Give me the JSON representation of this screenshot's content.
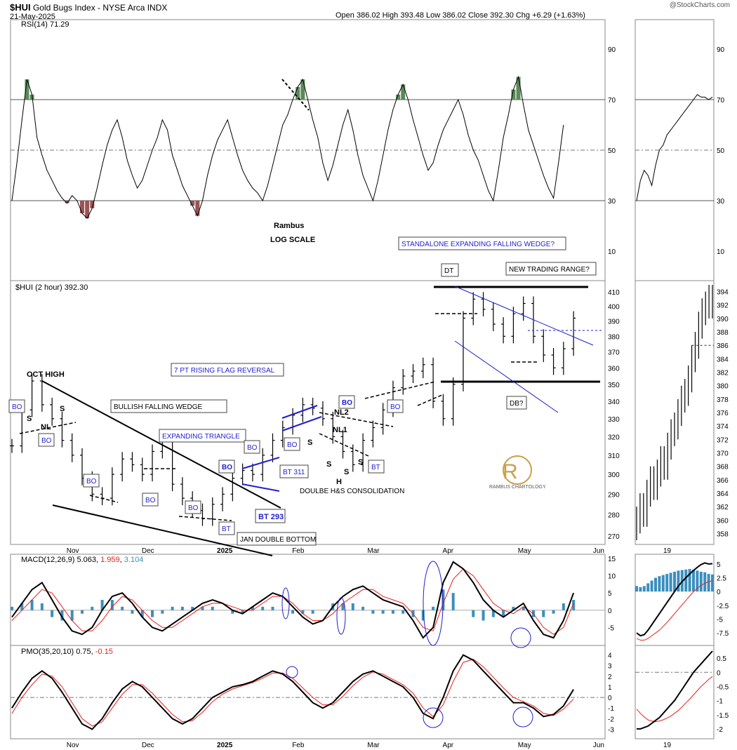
{
  "header": {
    "symbol": "$HUI",
    "name": "Gold Bugs Index - NYSE Arca  INDX",
    "date": "21-May-2025",
    "watermark": "@StockCharts.com",
    "ohlc": "Open 386.02  High 393.48  Low 386.02  Close 392.30  Chg +6.29 (+1.63%)",
    "chg_color": "#008000"
  },
  "colors": {
    "price": "#000000",
    "annotation_blue": "#1f1fd1",
    "macd_signal": "#e8201c",
    "histogram": "#3a8fbe",
    "rsi_over": "#5a8a5a",
    "rsi_under": "#9b5454",
    "logo": "#c9a04a"
  },
  "chart_data": [
    {
      "type": "line",
      "name": "rsi",
      "label": "RSI(14) 71.29",
      "ylim": [
        0,
        100
      ],
      "ticks": [
        10,
        30,
        50,
        70,
        90
      ],
      "x": [
        0,
        2,
        4,
        6,
        8,
        10,
        12,
        14,
        16,
        18,
        20,
        22,
        24,
        26,
        28,
        30,
        32,
        34,
        36,
        38,
        40,
        42,
        44,
        46,
        48,
        50,
        52,
        54,
        56,
        58,
        60,
        62,
        64,
        66,
        68,
        70,
        72,
        74,
        76,
        78,
        80,
        82,
        84,
        86,
        88,
        90,
        92,
        94,
        96,
        98,
        100,
        102,
        104,
        106,
        108,
        110,
        112,
        114,
        116,
        118,
        120,
        122,
        124,
        126,
        128,
        130,
        132,
        134,
        136,
        138,
        140,
        142,
        144,
        146,
        148,
        150,
        152,
        154,
        156,
        158,
        160,
        162,
        164,
        166,
        168,
        170,
        172,
        174,
        176,
        178,
        180,
        182,
        184,
        186,
        188,
        190,
        192,
        194,
        196,
        198,
        200,
        202,
        204,
        206,
        208,
        210,
        212,
        214,
        216,
        218,
        220
      ],
      "values": [
        30,
        45,
        62,
        78,
        72,
        55,
        48,
        42,
        38,
        34,
        31,
        29,
        32,
        30,
        25,
        23,
        27,
        35,
        44,
        52,
        58,
        62,
        55,
        46,
        40,
        35,
        38,
        44,
        50,
        55,
        62,
        58,
        48,
        42,
        36,
        32,
        28,
        24,
        30,
        40,
        48,
        54,
        58,
        62,
        55,
        48,
        42,
        38,
        35,
        33,
        30,
        36,
        44,
        52,
        60,
        64,
        70,
        75,
        78,
        70,
        62,
        55,
        45,
        38,
        44,
        52,
        60,
        66,
        58,
        48,
        40,
        35,
        30,
        38,
        48,
        58,
        66,
        72,
        76,
        70,
        62,
        55,
        48,
        42,
        45,
        52,
        58,
        62,
        66,
        70,
        64,
        56,
        50,
        46,
        40,
        34,
        30,
        42,
        55,
        64,
        74,
        79,
        68,
        58,
        52,
        46,
        40,
        35,
        31,
        45,
        60
      ],
      "overbought": 70,
      "oversold": 30,
      "annotations": [
        "Rambus",
        "LOG SCALE"
      ]
    },
    {
      "type": "ohlc",
      "name": "price",
      "label": "$HUI (2 hour) 392.30",
      "scale": "log",
      "ylim": [
        268,
        415
      ],
      "ticks": [
        270,
        280,
        290,
        300,
        310,
        320,
        330,
        340,
        350,
        360,
        370,
        380,
        390,
        400,
        410
      ],
      "x_labels": [
        "Nov",
        "Dec",
        "2025",
        "Feb",
        "Mar",
        "Apr",
        "May",
        "Jun"
      ],
      "x_label_pos": [
        24,
        54,
        84,
        114,
        144,
        174,
        204,
        234
      ],
      "x": [
        0,
        4,
        8,
        12,
        16,
        20,
        24,
        28,
        32,
        36,
        40,
        44,
        48,
        52,
        56,
        60,
        64,
        68,
        72,
        76,
        80,
        84,
        88,
        92,
        96,
        100,
        104,
        108,
        112,
        116,
        120,
        124,
        128,
        132,
        136,
        140,
        144,
        148,
        152,
        156,
        160,
        164,
        168,
        172,
        176,
        180,
        184,
        188,
        192,
        196,
        200,
        204,
        208,
        212,
        216,
        220,
        224
      ],
      "close": [
        315,
        335,
        352,
        338,
        330,
        318,
        310,
        298,
        290,
        288,
        300,
        308,
        305,
        300,
        312,
        318,
        295,
        288,
        282,
        278,
        285,
        290,
        298,
        302,
        300,
        310,
        318,
        325,
        332,
        338,
        336,
        330,
        320,
        312,
        305,
        318,
        325,
        335,
        348,
        355,
        358,
        362,
        340,
        330,
        350,
        392,
        405,
        398,
        388,
        380,
        395,
        402,
        380,
        368,
        360,
        372,
        392
      ],
      "levels": [
        {
          "label": "OCT HIGH"
        },
        {
          "label": "BULLISH FALLING WEDGE"
        },
        {
          "label": "EXPANDING TRIANGLE"
        },
        {
          "label": "7 PT RISING FLAG  REVERSAL"
        },
        {
          "label": "JAN DOUBLE BOTTOM"
        },
        {
          "label": "DOULBE H&S CONSOLIDATION"
        },
        {
          "label": "STANDALONE EXPANDING FALLING WEDGE?"
        },
        {
          "label": "NEW TRADING RANGE?"
        },
        {
          "label": "DT"
        },
        {
          "label": "DB?"
        },
        {
          "label": "BT 293"
        },
        {
          "label": "BT 311"
        },
        {
          "label": "NL2"
        },
        {
          "label": "NL1"
        },
        {
          "label": "NL"
        }
      ],
      "callouts": [
        "BO",
        "BO",
        "BO",
        "BO",
        "BO",
        "BO",
        "BO",
        "BO",
        "BO",
        "BO",
        "BT",
        "BT",
        "BT"
      ],
      "shoulder_labels": [
        "S",
        "S",
        "S",
        "S",
        "S",
        "S",
        "H"
      ],
      "logo_text": "RAMBUS CHARTOLOGY"
    },
    {
      "type": "line",
      "name": "macd",
      "label": "MACD(12,26,9) 5.063, 1.959, 3.104",
      "label_parts": [
        "MACD(12,26,9) 5.063, ",
        "1.959",
        ", ",
        "3.104"
      ],
      "ylim": [
        -9,
        15
      ],
      "ticks": [
        -5,
        0,
        5,
        10,
        15
      ],
      "x": [
        0,
        4,
        8,
        12,
        16,
        20,
        24,
        28,
        32,
        36,
        40,
        44,
        48,
        52,
        56,
        60,
        64,
        68,
        72,
        76,
        80,
        84,
        88,
        92,
        96,
        100,
        104,
        108,
        112,
        116,
        120,
        124,
        128,
        132,
        136,
        140,
        144,
        148,
        152,
        156,
        160,
        164,
        168,
        172,
        176,
        180,
        184,
        188,
        192,
        196,
        200,
        204,
        208,
        212,
        216,
        220,
        224
      ],
      "macd": [
        -2,
        2,
        6,
        8,
        3,
        -2,
        -6,
        -7,
        -5,
        0,
        4,
        5,
        2,
        -2,
        -5,
        -6,
        -4,
        -2,
        0,
        2,
        3,
        2,
        0,
        -1,
        1,
        3,
        5,
        4,
        1,
        -2,
        -4,
        -3,
        1,
        4,
        6,
        7,
        5,
        3,
        2,
        1,
        -3,
        -8,
        -5,
        8,
        14,
        12,
        8,
        3,
        0,
        -2,
        0,
        2,
        -3,
        -7,
        -8,
        -3,
        5
      ],
      "signal": [
        -3,
        0,
        3,
        6,
        5,
        1,
        -3,
        -6,
        -6,
        -3,
        1,
        4,
        3,
        0,
        -3,
        -5,
        -5,
        -3,
        -1,
        1,
        2,
        2,
        1,
        0,
        0,
        2,
        4,
        4,
        2,
        -1,
        -3,
        -3,
        -1,
        2,
        4,
        6,
        6,
        4,
        3,
        2,
        -1,
        -5,
        -6,
        2,
        9,
        12,
        10,
        6,
        2,
        0,
        -1,
        1,
        -1,
        -5,
        -7,
        -5,
        2
      ],
      "circle_count": 4
    },
    {
      "type": "line",
      "name": "pmo",
      "label": "PMO(35,20,10) 0.75, -0.15",
      "label_parts": [
        "PMO(35,20,10) 0.75, ",
        "-0.15"
      ],
      "ylim": [
        -3.5,
        4.5
      ],
      "ticks": [
        -3,
        -2,
        -1,
        0,
        1,
        2,
        3,
        4
      ],
      "x": [
        0,
        4,
        8,
        12,
        16,
        20,
        24,
        28,
        32,
        36,
        40,
        44,
        48,
        52,
        56,
        60,
        64,
        68,
        72,
        76,
        80,
        84,
        88,
        92,
        96,
        100,
        104,
        108,
        112,
        116,
        120,
        124,
        128,
        132,
        136,
        140,
        144,
        148,
        152,
        156,
        160,
        164,
        168,
        172,
        176,
        180,
        184,
        188,
        192,
        196,
        200,
        204,
        208,
        212,
        216,
        220,
        224
      ],
      "pmo": [
        -1,
        0.5,
        1.8,
        2.5,
        1.8,
        0.5,
        -1,
        -2.5,
        -3,
        -2,
        -0.5,
        0.8,
        1.5,
        1,
        0,
        -1,
        -2,
        -2.5,
        -2,
        -1,
        0,
        0.5,
        1,
        1.2,
        1.5,
        2,
        2.5,
        2.2,
        1.5,
        0.5,
        -0.5,
        -1,
        -0.5,
        0.5,
        1.5,
        2.2,
        2.5,
        2,
        1.5,
        1,
        0,
        -1.5,
        -2,
        0,
        2.5,
        4,
        3.5,
        2.5,
        1.5,
        0.5,
        -0.5,
        -0.5,
        -1,
        -1.8,
        -1.6,
        -0.8,
        0.75
      ],
      "signal": [
        -1.5,
        0,
        1.2,
        2.2,
        2,
        1,
        -0.5,
        -2,
        -2.7,
        -2.3,
        -1,
        0.3,
        1.2,
        1.2,
        0.4,
        -0.6,
        -1.6,
        -2.3,
        -2.2,
        -1.4,
        -0.4,
        0.3,
        0.8,
        1.1,
        1.4,
        1.8,
        2.3,
        2.3,
        1.8,
        0.9,
        0,
        -0.7,
        -0.7,
        0.1,
        1.1,
        1.9,
        2.4,
        2.2,
        1.7,
        1.2,
        0.4,
        -1,
        -1.8,
        -0.7,
        1.5,
        3.3,
        3.6,
        2.9,
        1.9,
        0.9,
        0,
        -0.4,
        -0.8,
        -1.5,
        -1.7,
        -1.1,
        -0.15
      ],
      "circle_count": 3,
      "x_labels": [
        "Nov",
        "Dec",
        "2025",
        "Feb",
        "Mar",
        "Apr",
        "May",
        "Jun"
      ]
    },
    {
      "type": "line",
      "name": "inset-rsi",
      "ylim": [
        0,
        100
      ],
      "ticks": [
        10,
        30,
        50,
        70,
        90
      ],
      "x": [
        0,
        1,
        2,
        3,
        4,
        5,
        6,
        7,
        8,
        9,
        10,
        11,
        12,
        13,
        14,
        15,
        16,
        17,
        18,
        19,
        20
      ],
      "values": [
        30,
        38,
        42,
        40,
        36,
        44,
        50,
        52,
        56,
        58,
        60,
        62,
        64,
        66,
        68,
        70,
        72,
        71,
        71,
        70,
        71
      ]
    },
    {
      "type": "ohlc",
      "name": "inset-price",
      "ylim": [
        357,
        395
      ],
      "ticks": [
        358,
        360,
        362,
        364,
        366,
        368,
        370,
        372,
        374,
        376,
        378,
        380,
        382,
        384,
        386,
        388,
        390,
        392,
        394
      ],
      "x_label": "19",
      "x": [
        0,
        1,
        2,
        3,
        4,
        5,
        6,
        7,
        8,
        9,
        10,
        11,
        12,
        13,
        14,
        15,
        16,
        17,
        18,
        19,
        20,
        21,
        22
      ],
      "close": [
        360,
        362,
        361,
        364,
        366,
        365,
        367,
        369,
        368,
        371,
        373,
        374,
        376,
        378,
        379,
        381,
        384,
        386,
        389,
        391,
        392,
        393,
        392
      ]
    },
    {
      "type": "line",
      "name": "inset-macd",
      "ylim": [
        -9,
        6
      ],
      "ticks": [
        -7.5,
        -5.0,
        -2.5,
        0.0,
        2.5,
        5.0
      ],
      "x_label": "19",
      "x": [
        0,
        1,
        2,
        3,
        4,
        5,
        6,
        7,
        8,
        9,
        10,
        11,
        12,
        13,
        14,
        15,
        16,
        17,
        18,
        19,
        20
      ],
      "macd": [
        -7.5,
        -8,
        -7.8,
        -7,
        -6,
        -5,
        -4,
        -3,
        -2,
        -1,
        0,
        1,
        1.8,
        2.5,
        3.2,
        3.8,
        4.4,
        4.9,
        5.2,
        5.0,
        5.06
      ],
      "signal": [
        -8.5,
        -8.8,
        -8.8,
        -8.5,
        -8,
        -7.5,
        -7,
        -6.3,
        -5.6,
        -4.8,
        -4,
        -3.2,
        -2.4,
        -1.6,
        -0.8,
        0,
        0.6,
        1.1,
        1.5,
        1.8,
        1.96
      ],
      "histogram": [
        1,
        0.8,
        1,
        1.5,
        2,
        2.5,
        2.8,
        3,
        3.2,
        3.4,
        3.6,
        3.8,
        3.9,
        4,
        4.1,
        4,
        3.8,
        3.6,
        3.5,
        3.2,
        3.1
      ]
    },
    {
      "type": "line",
      "name": "inset-pmo",
      "ylim": [
        -2.2,
        0.8
      ],
      "ticks": [
        -2.0,
        -1.5,
        -1.0,
        -0.5,
        0.0,
        0.5
      ],
      "x_label": "19",
      "x": [
        0,
        1,
        2,
        3,
        4,
        5,
        6,
        7,
        8,
        9,
        10,
        11,
        12,
        13,
        14,
        15,
        16,
        17,
        18,
        19,
        20
      ],
      "pmo": [
        -2.0,
        -2.0,
        -1.95,
        -1.9,
        -1.8,
        -1.7,
        -1.6,
        -1.45,
        -1.3,
        -1.15,
        -1.0,
        -0.8,
        -0.6,
        -0.4,
        -0.2,
        0,
        0.15,
        0.3,
        0.45,
        0.6,
        0.75
      ],
      "signal": [
        -1.3,
        -1.45,
        -1.58,
        -1.68,
        -1.72,
        -1.75,
        -1.72,
        -1.68,
        -1.62,
        -1.55,
        -1.45,
        -1.35,
        -1.22,
        -1.08,
        -0.95,
        -0.8,
        -0.65,
        -0.5,
        -0.38,
        -0.25,
        -0.15
      ]
    }
  ]
}
